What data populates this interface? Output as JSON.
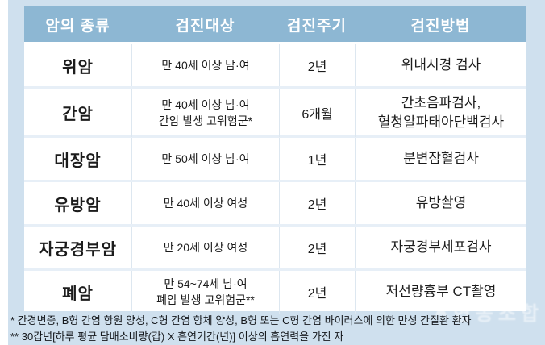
{
  "table": {
    "headers": [
      "암의 종류",
      "검진대상",
      "검진주기",
      "검진방법"
    ],
    "rows": [
      {
        "type": "위암",
        "target": [
          "만 40세 이상 남·여"
        ],
        "cycle": "2년",
        "method": [
          "위내시경 검사"
        ]
      },
      {
        "type": "간암",
        "target": [
          "만 40세 이상 남·여",
          "간암 발생 고위험군*"
        ],
        "cycle": "6개월",
        "method": [
          "간초음파검사,",
          "혈청알파태아단백검사"
        ]
      },
      {
        "type": "대장암",
        "target": [
          "만 50세 이상 남·여"
        ],
        "cycle": "1년",
        "method": [
          "분변잠혈검사"
        ]
      },
      {
        "type": "유방암",
        "target": [
          "만 40세 이상 여성"
        ],
        "cycle": "2년",
        "method": [
          "유방촬영"
        ]
      },
      {
        "type": "자궁경부암",
        "target": [
          "만 20세 이상 여성"
        ],
        "cycle": "2년",
        "method": [
          "자궁경부세포검사"
        ]
      },
      {
        "type": "폐암",
        "target": [
          "만 54~74세 남·여",
          "폐암 발생 고위험군**"
        ],
        "cycle": "2년",
        "method": [
          "저선량흉부 CT촬영"
        ]
      }
    ]
  },
  "footnotes": [
    "* 간경변증, B형 간염 항원 양성, C형 간염 항체 양성, B형 또는 C형 간염 바이러스에 의한 만성 간질환 환자",
    "** 30갑년[하루 평균 담배소비량(갑) X 흡연기간(년)] 이상의 흡연력을 가진 자"
  ],
  "watermark": {
    "logo_acronym": "KSCU",
    "text": "협동조합"
  },
  "colors": {
    "page_bg": "#cfe0ee",
    "header_bg": "#8db7d3",
    "header_text": "#ffffff",
    "body_bg": "#ffffff",
    "row_separator": "#e7eff7",
    "column_separator": "#dde7f0",
    "body_text": "#1c1c1c"
  }
}
